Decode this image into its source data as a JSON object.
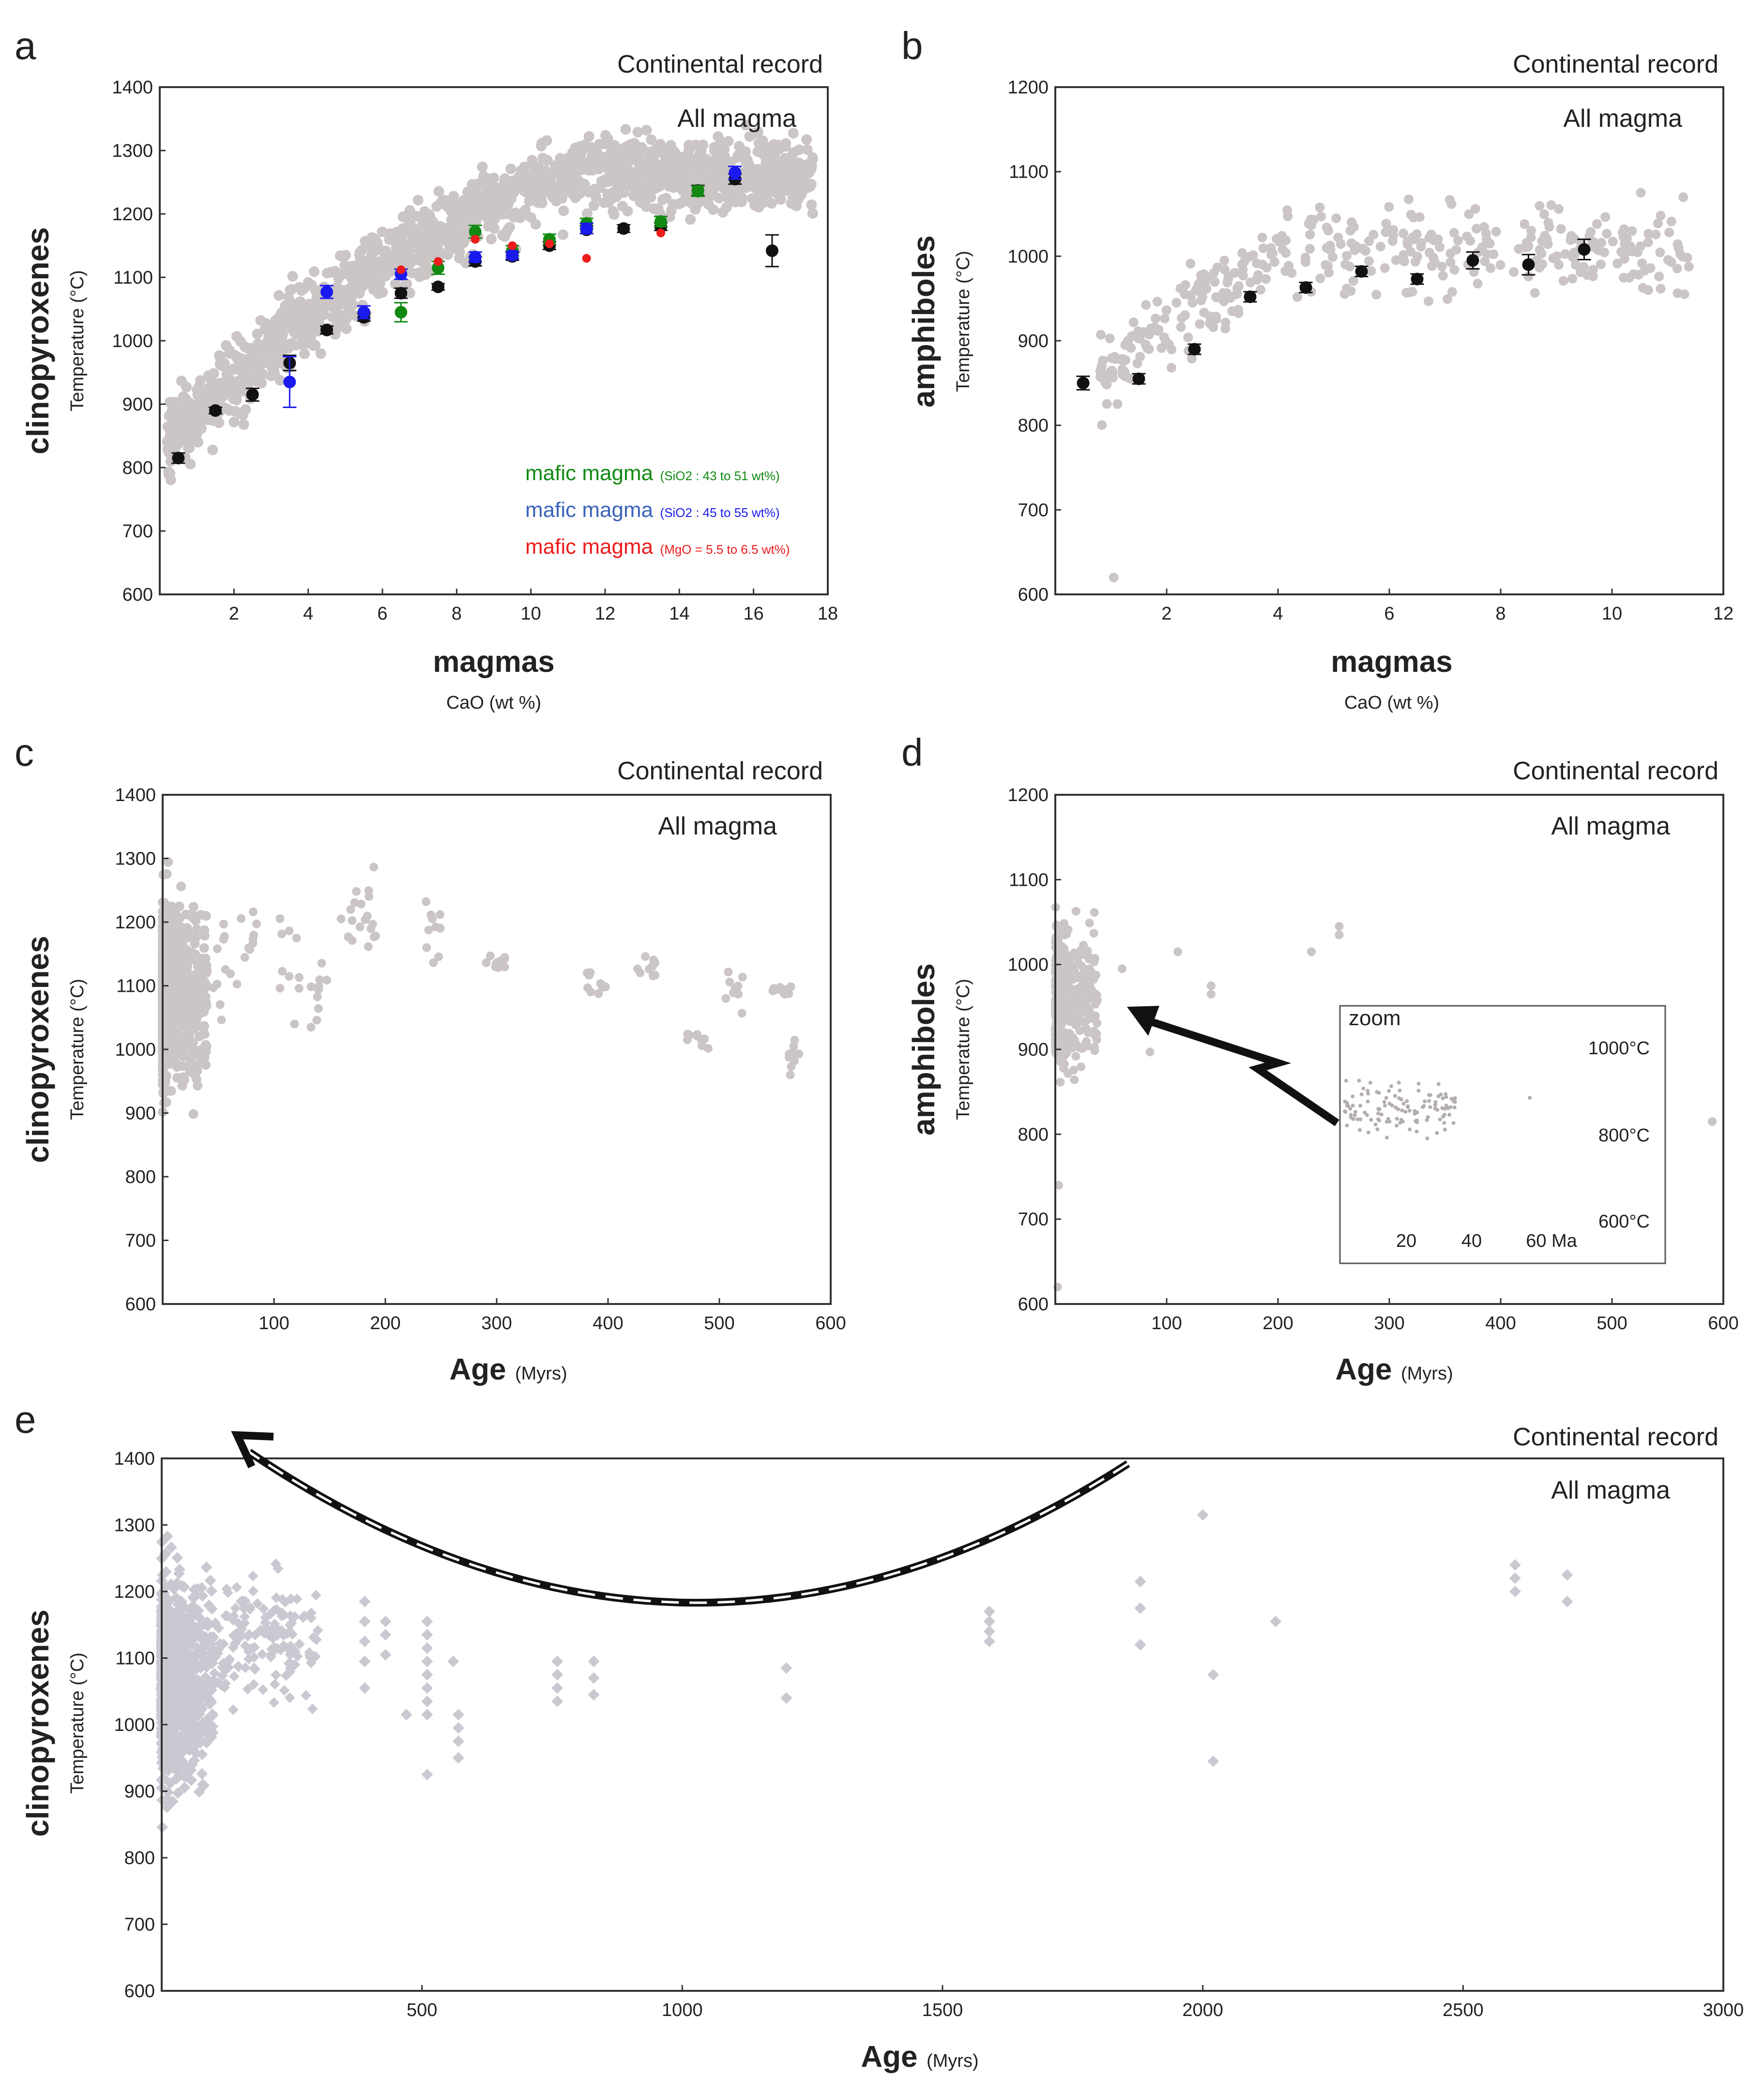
{
  "colors": {
    "gray_points": "#cbc5c5",
    "gray_diamonds": "#c9c9d2",
    "mean_points": "#111111",
    "green": "#128a12",
    "blue": "#1a1aee",
    "red": "#ee1c1c",
    "blue_legend": "#3a63b8"
  },
  "chart_data": [
    {
      "id": "a",
      "type": "scatter",
      "panel_letter": "a",
      "record_label": "Continental record",
      "magma_label": "All magma",
      "ylabel_main": "clinopyroxenes",
      "ylabel_sub": "Temperature (°C)",
      "xlabel_main": "magmas",
      "xlabel_sub": "CaO (wt %)",
      "xlim": [
        0,
        18
      ],
      "ylim": [
        600,
        1400
      ],
      "xticks": [
        2,
        4,
        6,
        8,
        10,
        12,
        14,
        16,
        18
      ],
      "yticks": [
        600,
        700,
        800,
        900,
        1000,
        1100,
        1200,
        1300,
        1400
      ],
      "legend": [
        {
          "main": "mafic magma",
          "detail": "(SiO2 : 43 to 51 wt%)",
          "color": "green"
        },
        {
          "main": "mafic magma",
          "detail": "(SiO2 : 45 to 55 wt%)",
          "color": "blue"
        },
        {
          "main": "mafic magma",
          "detail": "(MgO = 5.5 to 6.5 wt%)",
          "color": "red"
        }
      ],
      "series": [
        {
          "name": "All magma means",
          "color": "mean_points",
          "points": [
            [
              0.5,
              815
            ],
            [
              1.5,
              890
            ],
            [
              2.5,
              915
            ],
            [
              3.5,
              965
            ],
            [
              4.5,
              1017
            ],
            [
              5.5,
              1037
            ],
            [
              6.5,
              1075
            ],
            [
              7.5,
              1085
            ],
            [
              8.5,
              1125
            ],
            [
              9.5,
              1133
            ],
            [
              10.5,
              1150
            ],
            [
              11.5,
              1175
            ],
            [
              12.5,
              1177
            ],
            [
              13.5,
              1180
            ],
            [
              14.5,
              1237
            ],
            [
              15.5,
              1255
            ],
            [
              16.5,
              1142
            ]
          ],
          "errors": [
            8,
            5,
            10,
            12,
            6,
            6,
            8,
            5,
            7,
            6,
            6,
            6,
            6,
            6,
            8,
            8,
            25
          ]
        },
        {
          "name": "mafic magma (SiO2 : 43 to 51 wt%)",
          "color": "green",
          "points": [
            [
              6.5,
              1045
            ],
            [
              7.5,
              1115
            ],
            [
              8.5,
              1172
            ],
            [
              9.5,
              1142
            ],
            [
              10.5,
              1160
            ],
            [
              11.5,
              1185
            ],
            [
              13.5,
              1188
            ],
            [
              14.5,
              1236
            ]
          ],
          "errors": [
            15,
            10,
            10,
            8,
            8,
            8,
            8,
            8
          ]
        },
        {
          "name": "mafic magma (SiO2 : 45 to 55 wt%)",
          "color": "blue",
          "points": [
            [
              3.5,
              935
            ],
            [
              4.5,
              1077
            ],
            [
              5.5,
              1045
            ],
            [
              6.5,
              1105
            ],
            [
              8.5,
              1132
            ],
            [
              9.5,
              1135
            ],
            [
              11.5,
              1177
            ],
            [
              15.5,
              1265
            ]
          ],
          "errors": [
            40,
            10,
            10,
            8,
            8,
            6,
            8,
            10
          ]
        },
        {
          "name": "mafic magma (MgO = 5.5 to 6.5 wt%)",
          "color": "red",
          "points": [
            [
              6.5,
              1112
            ],
            [
              7.5,
              1125
            ],
            [
              8.5,
              1160
            ],
            [
              9.5,
              1150
            ],
            [
              10.5,
              1153
            ],
            [
              11.5,
              1130
            ],
            [
              13.5,
              1170
            ]
          ],
          "errors": [
            0,
            0,
            0,
            0,
            0,
            0,
            0
          ]
        }
      ]
    },
    {
      "id": "b",
      "type": "scatter",
      "panel_letter": "b",
      "record_label": "Continental record",
      "magma_label": "All magma",
      "ylabel_main": "amphiboles",
      "ylabel_sub": "Temperature (°C)",
      "xlabel_main": "magmas",
      "xlabel_sub": "CaO (wt %)",
      "xlim": [
        0,
        12
      ],
      "ylim": [
        600,
        1200
      ],
      "xticks": [
        2,
        4,
        6,
        8,
        10,
        12
      ],
      "yticks": [
        600,
        700,
        800,
        900,
        1000,
        1100,
        1200
      ],
      "series": [
        {
          "name": "All magma means",
          "color": "mean_points",
          "points": [
            [
              0.5,
              850
            ],
            [
              1.5,
              855
            ],
            [
              2.5,
              890
            ],
            [
              3.5,
              952
            ],
            [
              4.5,
              963
            ],
            [
              5.5,
              982
            ],
            [
              6.5,
              973
            ],
            [
              7.5,
              995
            ],
            [
              8.5,
              990
            ],
            [
              9.5,
              1008
            ]
          ],
          "errors": [
            8,
            6,
            6,
            6,
            6,
            6,
            6,
            10,
            12,
            12
          ]
        }
      ]
    },
    {
      "id": "c",
      "type": "scatter",
      "panel_letter": "c",
      "record_label": "Continental record",
      "magma_label": "All magma",
      "ylabel_main": "clinopyroxenes",
      "ylabel_sub": "Temperature (°C)",
      "xlabel_main": "Age",
      "xlabel_sub": "(Myrs)",
      "xlim": [
        0,
        600
      ],
      "ylim": [
        600,
        1400
      ],
      "xticks": [
        100,
        200,
        300,
        400,
        500,
        600
      ],
      "yticks": [
        600,
        700,
        800,
        900,
        1000,
        1100,
        1200,
        1300,
        1400
      ]
    },
    {
      "id": "d",
      "type": "scatter",
      "panel_letter": "d",
      "record_label": "Continental record",
      "magma_label": "All magma",
      "ylabel_main": "amphiboles",
      "ylabel_sub": "Temperature (°C)",
      "xlabel_main": "Age",
      "xlabel_sub": "(Myrs)",
      "xlim": [
        0,
        600
      ],
      "ylim": [
        600,
        1200
      ],
      "xticks": [
        100,
        200,
        300,
        400,
        500,
        600
      ],
      "yticks": [
        600,
        700,
        800,
        900,
        1000,
        1100,
        1200
      ],
      "inset": {
        "title": "zoom",
        "xticks": [
          "20",
          "40",
          "60 Ma"
        ],
        "yticks": [
          "1000°C",
          "800°C",
          "600°C"
        ]
      }
    },
    {
      "id": "e",
      "type": "scatter",
      "panel_letter": "e",
      "record_label": "Continental record",
      "magma_label": "All magma",
      "ylabel_main": "clinopyroxenes",
      "ylabel_sub": "Temperature (°C)",
      "xlabel_main": "Age",
      "xlabel_sub": "(Myrs)",
      "xlim": [
        0,
        3000
      ],
      "ylim": [
        600,
        1400
      ],
      "xticks": [
        500,
        1000,
        1500,
        2000,
        2500,
        3000
      ],
      "yticks": [
        600,
        700,
        800,
        900,
        1000,
        1100,
        1200,
        1300,
        1400
      ],
      "isolated_points": [
        [
          390,
          1185
        ],
        [
          390,
          1155
        ],
        [
          390,
          1125
        ],
        [
          390,
          1095
        ],
        [
          390,
          1055
        ],
        [
          430,
          1155
        ],
        [
          430,
          1135
        ],
        [
          430,
          1105
        ],
        [
          470,
          1015
        ],
        [
          510,
          1155
        ],
        [
          510,
          1135
        ],
        [
          510,
          1115
        ],
        [
          510,
          1095
        ],
        [
          510,
          1075
        ],
        [
          510,
          1055
        ],
        [
          510,
          1035
        ],
        [
          510,
          1015
        ],
        [
          510,
          925
        ],
        [
          560,
          1095
        ],
        [
          570,
          1015
        ],
        [
          570,
          995
        ],
        [
          570,
          975
        ],
        [
          570,
          950
        ],
        [
          760,
          1095
        ],
        [
          760,
          1075
        ],
        [
          760,
          1055
        ],
        [
          760,
          1035
        ],
        [
          830,
          1095
        ],
        [
          830,
          1070
        ],
        [
          830,
          1045
        ],
        [
          1200,
          1085
        ],
        [
          1200,
          1040
        ],
        [
          1590,
          1170
        ],
        [
          1590,
          1155
        ],
        [
          1590,
          1140
        ],
        [
          1590,
          1125
        ],
        [
          1880,
          1215
        ],
        [
          1880,
          1175
        ],
        [
          1880,
          1120
        ],
        [
          2000,
          1315
        ],
        [
          2020,
          1075
        ],
        [
          2020,
          945
        ],
        [
          2140,
          1155
        ],
        [
          2600,
          1240
        ],
        [
          2600,
          1220
        ],
        [
          2600,
          1200
        ],
        [
          2700,
          1225
        ],
        [
          2700,
          1185
        ]
      ]
    }
  ],
  "figure_text": {
    "a": {
      "letter": "a",
      "record": "Continental record",
      "magma": "All magma",
      "ymain": "clinopyroxenes",
      "ysub": "Temperature (°C)",
      "xmain": "magmas",
      "xsub": "CaO (wt %)",
      "legend": [
        {
          "main": "mafic magma",
          "detail": "(SiO2 : 43 to 51 wt%)"
        },
        {
          "main": "mafic magma",
          "detail": "(SiO2 : 45 to 55 wt%)"
        },
        {
          "main": "mafic magma",
          "detail": "(MgO = 5.5 to 6.5 wt%)"
        }
      ]
    },
    "b": {
      "letter": "b",
      "record": "Continental record",
      "magma": "All magma",
      "ymain": "amphiboles",
      "ysub": "Temperature (°C)",
      "xmain": "magmas",
      "xsub": "CaO (wt %)"
    },
    "c": {
      "letter": "c",
      "record": "Continental record",
      "magma": "All magma",
      "ymain": "clinopyroxenes",
      "ysub": "Temperature (°C)",
      "xmain": "Age",
      "xsub": "(Myrs)"
    },
    "d": {
      "letter": "d",
      "record": "Continental record",
      "magma": "All magma",
      "ymain": "amphiboles",
      "ysub": "Temperature (°C)",
      "xmain": "Age",
      "xsub": "(Myrs)",
      "zoom": "zoom",
      "zoom_x": [
        "20",
        "40",
        "60 Ma"
      ],
      "zoom_y": [
        "1000°C",
        "800°C",
        "600°C"
      ]
    },
    "e": {
      "letter": "e",
      "record": "Continental record",
      "magma": "All magma",
      "ymain": "clinopyroxenes",
      "ysub": "Temperature (°C)",
      "xmain": "Age",
      "xsub": "(Myrs)"
    }
  }
}
